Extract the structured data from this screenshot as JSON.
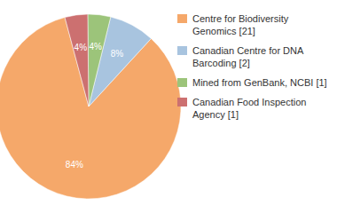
{
  "chart_data": {
    "type": "pie",
    "labels": [
      "Centre for Biodiversity\nGenomics [21]",
      "Canadian Centre for DNA\nBarcoding [2]",
      "Mined from GenBank, NCBI [1]",
      "Canadian Food Inspection\nAgency [1]"
    ],
    "values": [
      84,
      8,
      4,
      4
    ],
    "value_labels": [
      "84%",
      "8%",
      "4%",
      "4%"
    ],
    "colors": [
      "#F5A86A",
      "#A8C4DF",
      "#9CC47A",
      "#CC7070"
    ],
    "data_labels": true,
    "legend": "upper right"
  }
}
